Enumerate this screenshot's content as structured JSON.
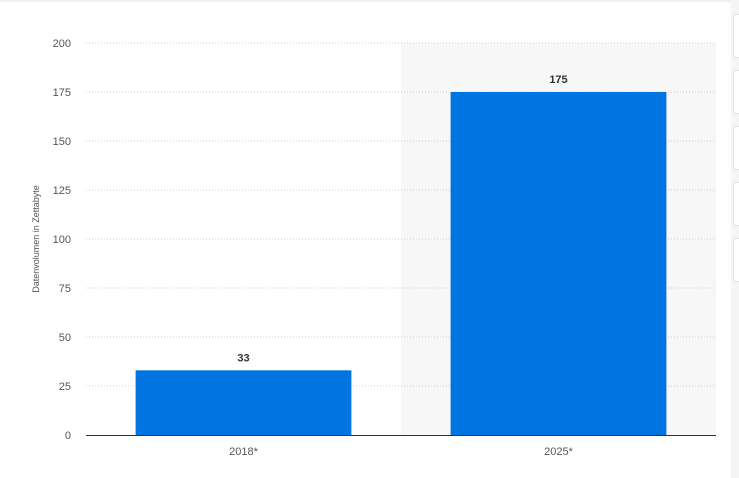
{
  "chart_data": {
    "type": "bar",
    "title": "",
    "xlabel": "",
    "ylabel": "Datenvolumen in Zettabyte",
    "categories": [
      "2018*",
      "2025*"
    ],
    "values": [
      33,
      175
    ],
    "value_labels": [
      "33",
      "175"
    ],
    "ylim": [
      0,
      200
    ],
    "yticks": [
      "0",
      "25",
      "50",
      "75",
      "100",
      "125",
      "150",
      "175",
      "200"
    ],
    "highlighted_category": "2025*",
    "grid": true,
    "legend": "none",
    "colors": {
      "bar": "#0074e0",
      "highlight_band": "#f7f7f7",
      "grid": "#cccccc",
      "axis": "#333333"
    }
  },
  "side_tabs": 5
}
